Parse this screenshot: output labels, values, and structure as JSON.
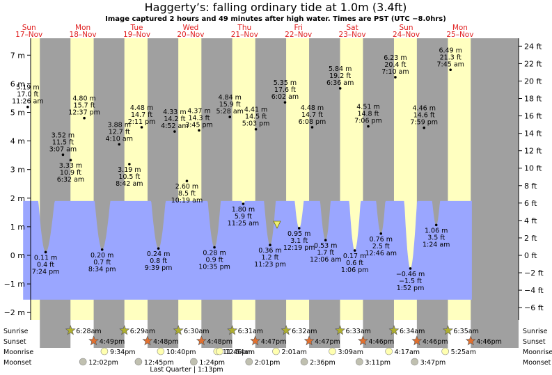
{
  "title": "Haggerty’s: falling  ordinary tide at 1.0m (3.4ft)",
  "subtitle": "Image captured 2 hours and 49 minutes after high water. Times are PST (UTC −8.0hrs)",
  "colors": {
    "day": "#ffffc0",
    "night": "#a0a0a0",
    "water": "#9aa6ff",
    "day_label": "#e02020",
    "sun": "#b0b030",
    "sunset": "#e07030",
    "moonrise": "#ffffb0",
    "moonset": "#c0c0b0"
  },
  "days": [
    {
      "dow": "Sun",
      "date": "17–Nov"
    },
    {
      "dow": "Mon",
      "date": "18–Nov"
    },
    {
      "dow": "Tue",
      "date": "19–Nov"
    },
    {
      "dow": "Wed",
      "date": "20–Nov"
    },
    {
      "dow": "Thu",
      "date": "21–Nov"
    },
    {
      "dow": "Fri",
      "date": "22–Nov"
    },
    {
      "dow": "Sat",
      "date": "23–Nov"
    },
    {
      "dow": "Sun",
      "date": "24–Nov"
    },
    {
      "dow": "Mon",
      "date": "25–Nov"
    }
  ],
  "chart_data": {
    "type": "area",
    "title": "Haggerty’s: falling  ordinary tide at 1.0m (3.4ft)",
    "y_left_unit": "m",
    "y_right_unit": "ft",
    "ylim_m": [
      -2.3,
      7.4
    ],
    "left_ticks": [
      "−2 m",
      "−1 m",
      "0 m",
      "1 m",
      "2 m",
      "3 m",
      "4 m",
      "5 m",
      "6 m",
      "7 m"
    ],
    "right_ticks": [
      "−6 ft",
      "−4 ft",
      "−2 ft",
      "0 ft",
      "2 ft",
      "4 ft",
      "6 ft",
      "8 ft",
      "10 ft",
      "12 ft",
      "14 ft",
      "16 ft",
      "18 ft",
      "20 ft",
      "22 ft",
      "24 ft"
    ],
    "x_days": 9,
    "extremes": [
      {
        "day": 0,
        "time": "11:26 am",
        "ft": "17.0 ft",
        "m": "5.19 m",
        "h": 5.19,
        "type": "high"
      },
      {
        "day": 0,
        "time": "7:24 pm",
        "ft": "0.4 ft",
        "m": "0.11 m",
        "h": 0.11,
        "type": "low"
      },
      {
        "day": 1,
        "time": "3:07 am",
        "ft": "11.5 ft",
        "m": "3.52 m",
        "h": 3.52,
        "type": "high"
      },
      {
        "day": 1,
        "time": "6:32 am",
        "ft": "10.9 ft",
        "m": "3.33 m",
        "h": 3.33,
        "type": "low"
      },
      {
        "day": 1,
        "time": "12:37 pm",
        "ft": "15.7 ft",
        "m": "4.80 m",
        "h": 4.8,
        "type": "high"
      },
      {
        "day": 1,
        "time": "8:34 pm",
        "ft": "0.7 ft",
        "m": "0.20 m",
        "h": 0.2,
        "type": "low"
      },
      {
        "day": 2,
        "time": "4:10 am",
        "ft": "12.7 ft",
        "m": "3.88 m",
        "h": 3.88,
        "type": "high"
      },
      {
        "day": 2,
        "time": "8:42 am",
        "ft": "10.5 ft",
        "m": "3.19 m",
        "h": 3.19,
        "type": "low"
      },
      {
        "day": 2,
        "time": "2:11 pm",
        "ft": "14.7 ft",
        "m": "4.48 m",
        "h": 4.48,
        "type": "high"
      },
      {
        "day": 2,
        "time": "9:39 pm",
        "ft": "0.8 ft",
        "m": "0.24 m",
        "h": 0.24,
        "type": "low"
      },
      {
        "day": 3,
        "time": "4:52 am",
        "ft": "14.2 ft",
        "m": "4.33 m",
        "h": 4.33,
        "type": "high"
      },
      {
        "day": 3,
        "time": "10:19 am",
        "ft": "8.5 ft",
        "m": "2.60 m",
        "h": 2.6,
        "type": "low"
      },
      {
        "day": 3,
        "time": "3:45 pm",
        "ft": "14.3 ft",
        "m": "4.37 m",
        "h": 4.37,
        "type": "high"
      },
      {
        "day": 3,
        "time": "10:35 pm",
        "ft": "0.9 ft",
        "m": "0.28 m",
        "h": 0.28,
        "type": "low"
      },
      {
        "day": 4,
        "time": "5:28 am",
        "ft": "15.9 ft",
        "m": "4.84 m",
        "h": 4.84,
        "type": "high"
      },
      {
        "day": 4,
        "time": "11:25 am",
        "ft": "5.9 ft",
        "m": "1.80 m",
        "h": 1.8,
        "type": "low"
      },
      {
        "day": 4,
        "time": "5:03 pm",
        "ft": "14.5 ft",
        "m": "4.41 m",
        "h": 4.41,
        "type": "high"
      },
      {
        "day": 4,
        "time": "11:23 pm",
        "ft": "1.2 ft",
        "m": "0.36 m",
        "h": 0.36,
        "type": "low"
      },
      {
        "day": 5,
        "time": "6:02 am",
        "ft": "17.6 ft",
        "m": "5.35 m",
        "h": 5.35,
        "type": "high"
      },
      {
        "day": 5,
        "time": "12:19 pm",
        "ft": "3.1 ft",
        "m": "0.95 m",
        "h": 0.95,
        "type": "low"
      },
      {
        "day": 5,
        "time": "6:08 pm",
        "ft": "14.7 ft",
        "m": "4.48 m",
        "h": 4.48,
        "type": "high"
      },
      {
        "day": 6,
        "time": "12:06 am",
        "ft": "1.7 ft",
        "m": "0.53 m",
        "h": 0.53,
        "type": "low"
      },
      {
        "day": 6,
        "time": "6:36 am",
        "ft": "19.2 ft",
        "m": "5.84 m",
        "h": 5.84,
        "type": "high"
      },
      {
        "day": 6,
        "time": "1:06 pm",
        "ft": "0.6 ft",
        "m": "0.17 m",
        "h": 0.17,
        "type": "low"
      },
      {
        "day": 6,
        "time": "7:06 pm",
        "ft": "14.8 ft",
        "m": "4.51 m",
        "h": 4.51,
        "type": "high"
      },
      {
        "day": 7,
        "time": "12:46 am",
        "ft": "2.5 ft",
        "m": "0.76 m",
        "h": 0.76,
        "type": "low"
      },
      {
        "day": 7,
        "time": "7:10 am",
        "ft": "20.4 ft",
        "m": "6.23 m",
        "h": 6.23,
        "type": "high"
      },
      {
        "day": 7,
        "time": "1:52 pm",
        "ft": "−1.5 ft",
        "m": "−0.46 m",
        "h": -0.46,
        "type": "low"
      },
      {
        "day": 7,
        "time": "7:59 pm",
        "ft": "14.6 ft",
        "m": "4.46 m",
        "h": 4.46,
        "type": "high"
      },
      {
        "day": 8,
        "time": "1:24 am",
        "ft": "3.5 ft",
        "m": "1.06 m",
        "h": 1.06,
        "type": "low"
      },
      {
        "day": 8,
        "time": "7:45 am",
        "ft": "21.3 ft",
        "m": "6.49 m",
        "h": 6.49,
        "type": "high"
      }
    ],
    "current_height_m": 1.0
  },
  "astro": {
    "row_labels": [
      "Sunrise",
      "Sunset",
      "Moonrise",
      "Moonset"
    ],
    "sunrise": [
      {
        "day": 1,
        "time": "6:28am"
      },
      {
        "day": 2,
        "time": "6:29am"
      },
      {
        "day": 3,
        "time": "6:30am"
      },
      {
        "day": 4,
        "time": "6:31am"
      },
      {
        "day": 5,
        "time": "6:32am"
      },
      {
        "day": 6,
        "time": "6:33am"
      },
      {
        "day": 7,
        "time": "6:34am"
      },
      {
        "day": 8,
        "time": "6:35am"
      }
    ],
    "sunset": [
      {
        "day": 1,
        "time": "4:49pm"
      },
      {
        "day": 2,
        "time": "4:48pm"
      },
      {
        "day": 3,
        "time": "4:48pm"
      },
      {
        "day": 4,
        "time": "4:47pm"
      },
      {
        "day": 5,
        "time": "4:47pm"
      },
      {
        "day": 6,
        "time": "4:46pm"
      },
      {
        "day": 7,
        "time": "4:46pm"
      },
      {
        "day": 8,
        "time": "4:46pm"
      }
    ],
    "moonrise": [
      {
        "day": 1,
        "time": "9:34pm"
      },
      {
        "day": 2,
        "time": "10:40pm"
      },
      {
        "day": 3,
        "time": "11:46pm"
      },
      {
        "day": 4,
        "time": "12:54am"
      },
      {
        "day": 5,
        "time": "2:01am"
      },
      {
        "day": 6,
        "time": "3:09am"
      },
      {
        "day": 7,
        "time": "4:17am"
      },
      {
        "day": 8,
        "time": "5:25am"
      }
    ],
    "moonset": [
      {
        "day": 1,
        "time": "12:02pm"
      },
      {
        "day": 2,
        "time": "12:45pm"
      },
      {
        "day": 3,
        "time": "1:24pm"
      },
      {
        "day": 4,
        "time": "2:01pm"
      },
      {
        "day": 5,
        "time": "2:36pm"
      },
      {
        "day": 6,
        "time": "3:11pm"
      },
      {
        "day": 7,
        "time": "3:47pm"
      }
    ],
    "moon_phase": "Last Quarter | 1:13pm"
  }
}
